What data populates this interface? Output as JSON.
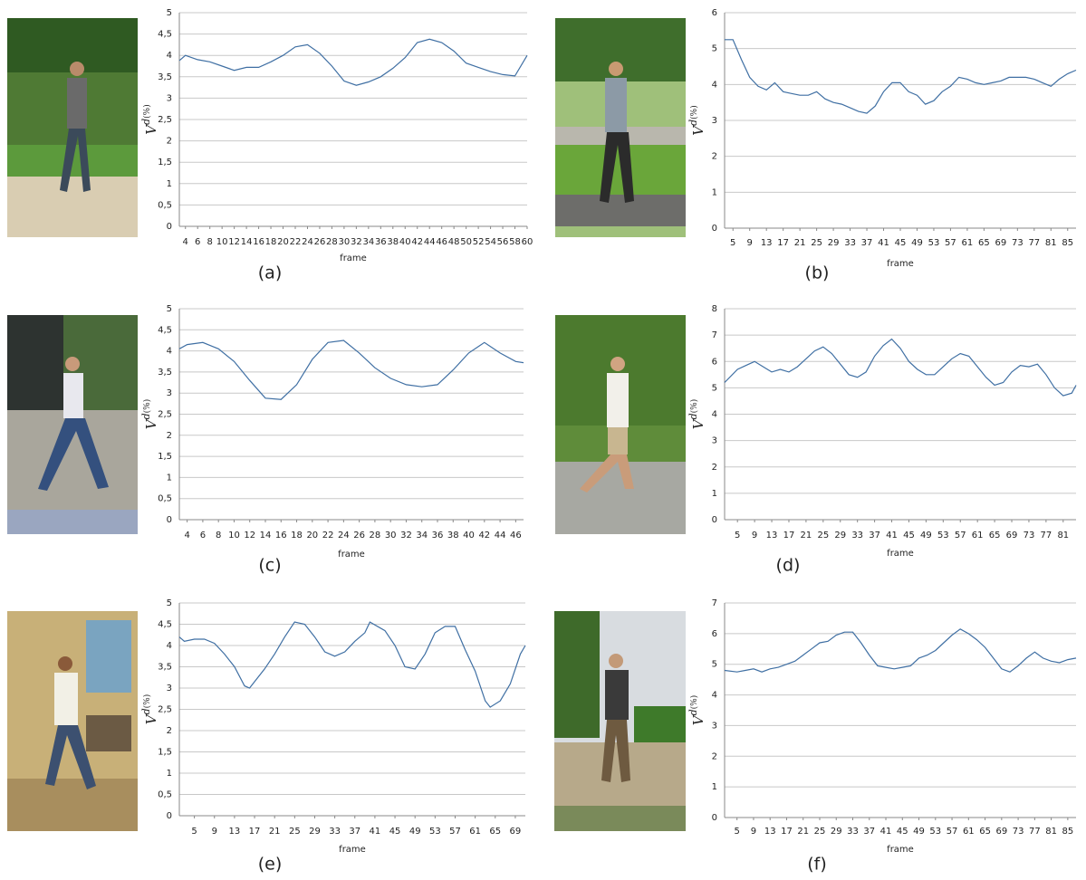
{
  "chart_data": [
    {
      "type": "line",
      "caption": "(a)",
      "x_label": "frame",
      "y_label": "V",
      "y_label_superscript": "d",
      "y_label_suffix": "(%)",
      "color": "#3f6fa3",
      "grid": true,
      "x": [
        3,
        4,
        6,
        8,
        10,
        12,
        14,
        16,
        18,
        20,
        22,
        24,
        26,
        28,
        30,
        32,
        34,
        36,
        38,
        40,
        42,
        44,
        46,
        48,
        50,
        52,
        54,
        56,
        58,
        60
      ],
      "values": [
        3.88,
        4.0,
        3.9,
        3.85,
        3.75,
        3.65,
        3.72,
        3.72,
        3.85,
        4.0,
        4.2,
        4.25,
        4.05,
        3.75,
        3.4,
        3.3,
        3.38,
        3.5,
        3.7,
        3.95,
        4.3,
        4.38,
        4.3,
        4.1,
        3.82,
        3.72,
        3.62,
        3.55,
        3.52,
        4.0
      ],
      "xlim": [
        3,
        60
      ],
      "xticks": [
        4,
        6,
        8,
        10,
        12,
        14,
        16,
        18,
        20,
        22,
        24,
        26,
        28,
        30,
        32,
        34,
        36,
        38,
        40,
        42,
        44,
        46,
        48,
        50,
        52,
        54,
        56,
        58,
        60
      ],
      "ylim": [
        0,
        5
      ],
      "yticks": [
        0,
        {
          "value": 0.5,
          "label": "0,5"
        },
        1,
        {
          "value": 1.5,
          "label": "1,5"
        },
        2,
        {
          "value": 2.5,
          "label": "2,5"
        },
        3,
        {
          "value": 3.5,
          "label": "3,5"
        },
        4,
        {
          "value": 4.5,
          "label": "4,5"
        },
        5
      ]
    },
    {
      "type": "line",
      "caption": "(b)",
      "x_label": "frame",
      "y_label": "V",
      "y_label_superscript": "d",
      "y_label_suffix": "(%)",
      "color": "#3f6fa3",
      "grid": true,
      "x": [
        3,
        5,
        7,
        9,
        11,
        13,
        15,
        17,
        19,
        21,
        23,
        25,
        27,
        29,
        31,
        33,
        35,
        37,
        39,
        41,
        43,
        45,
        47,
        49,
        51,
        53,
        55,
        57,
        59,
        61,
        63,
        65,
        67,
        69,
        71,
        73,
        75,
        77,
        79,
        81,
        83,
        85,
        87
      ],
      "values": [
        5.25,
        5.25,
        4.7,
        4.2,
        3.95,
        3.85,
        4.05,
        3.8,
        3.75,
        3.7,
        3.7,
        3.8,
        3.6,
        3.5,
        3.45,
        3.35,
        3.25,
        3.2,
        3.4,
        3.8,
        4.05,
        4.05,
        3.8,
        3.7,
        3.45,
        3.55,
        3.8,
        3.95,
        4.2,
        4.15,
        4.05,
        4.0,
        4.05,
        4.1,
        4.2,
        4.2,
        4.2,
        4.15,
        4.05,
        3.95,
        4.15,
        4.3,
        4.4
      ],
      "xlim": [
        3,
        87
      ],
      "xticks": [
        5,
        9,
        13,
        17,
        21,
        25,
        29,
        33,
        37,
        41,
        45,
        49,
        53,
        57,
        61,
        65,
        69,
        73,
        77,
        81,
        85
      ],
      "ylim": [
        0,
        6
      ],
      "yticks": [
        0,
        1,
        2,
        3,
        4,
        5,
        6
      ]
    },
    {
      "type": "line",
      "caption": "(c)",
      "x_label": "frame",
      "y_label": "V",
      "y_label_superscript": "d",
      "y_label_suffix": "(%)",
      "color": "#3f6fa3",
      "grid": true,
      "x": [
        3,
        4,
        6,
        8,
        10,
        12,
        14,
        16,
        18,
        20,
        22,
        24,
        26,
        28,
        30,
        32,
        34,
        36,
        38,
        40,
        42,
        44,
        46,
        47
      ],
      "values": [
        4.05,
        4.15,
        4.2,
        4.05,
        3.75,
        3.3,
        2.88,
        2.85,
        3.2,
        3.8,
        4.2,
        4.25,
        3.95,
        3.6,
        3.35,
        3.2,
        3.15,
        3.2,
        3.55,
        3.95,
        4.2,
        3.95,
        3.75,
        3.72
      ],
      "xlim": [
        3,
        47
      ],
      "xticks": [
        4,
        6,
        8,
        10,
        12,
        14,
        16,
        18,
        20,
        22,
        24,
        26,
        28,
        30,
        32,
        34,
        36,
        38,
        40,
        42,
        44,
        46
      ],
      "ylim": [
        0,
        5
      ],
      "yticks": [
        0,
        {
          "value": 0.5,
          "label": "0,5"
        },
        1,
        {
          "value": 1.5,
          "label": "1,5"
        },
        2,
        {
          "value": 2.5,
          "label": "2,5"
        },
        3,
        {
          "value": 3.5,
          "label": "3,5"
        },
        4,
        {
          "value": 4.5,
          "label": "4,5"
        },
        5
      ]
    },
    {
      "type": "line",
      "caption": "(d)",
      "x_label": "frame",
      "y_label": "V",
      "y_label_superscript": "d",
      "y_label_suffix": "(%)",
      "color": "#3f6fa3",
      "grid": true,
      "x": [
        2,
        5,
        7,
        9,
        11,
        13,
        15,
        17,
        19,
        21,
        23,
        25,
        27,
        29,
        31,
        33,
        35,
        37,
        39,
        41,
        43,
        45,
        47,
        49,
        51,
        53,
        55,
        57,
        59,
        61,
        63,
        65,
        67,
        69,
        71,
        73,
        75,
        77,
        79,
        81,
        83,
        84
      ],
      "values": [
        5.2,
        5.7,
        5.85,
        6.0,
        5.8,
        5.6,
        5.7,
        5.6,
        5.8,
        6.1,
        6.4,
        6.55,
        6.3,
        5.9,
        5.5,
        5.4,
        5.6,
        6.2,
        6.6,
        6.85,
        6.5,
        6.0,
        5.7,
        5.5,
        5.5,
        5.8,
        6.1,
        6.3,
        6.2,
        5.8,
        5.4,
        5.1,
        5.2,
        5.6,
        5.85,
        5.8,
        5.9,
        5.5,
        5.0,
        4.7,
        4.8,
        5.1
      ],
      "xlim": [
        2,
        84
      ],
      "xticks": [
        5,
        9,
        13,
        17,
        21,
        25,
        29,
        33,
        37,
        41,
        45,
        49,
        53,
        57,
        61,
        65,
        69,
        73,
        77,
        81
      ],
      "ylim": [
        0,
        8
      ],
      "yticks": [
        0,
        1,
        2,
        3,
        4,
        5,
        6,
        7,
        8
      ]
    },
    {
      "type": "line",
      "caption": "(e)",
      "x_label": "frame",
      "y_label": "V",
      "y_label_superscript": "d",
      "y_label_suffix": "(%)",
      "color": "#3f6fa3",
      "grid": true,
      "x": [
        2,
        3,
        5,
        7,
        9,
        11,
        13,
        15,
        16,
        17,
        19,
        21,
        23,
        25,
        27,
        29,
        31,
        33,
        35,
        37,
        39,
        40,
        43,
        45,
        47,
        49,
        51,
        53,
        55,
        57,
        59,
        61,
        63,
        64,
        66,
        68,
        70,
        71
      ],
      "values": [
        4.2,
        4.1,
        4.15,
        4.15,
        4.05,
        3.8,
        3.5,
        3.05,
        3.0,
        3.15,
        3.45,
        3.8,
        4.2,
        4.55,
        4.5,
        4.2,
        3.85,
        3.75,
        3.85,
        4.1,
        4.3,
        4.55,
        4.35,
        4.0,
        3.5,
        3.45,
        3.8,
        4.3,
        4.45,
        4.45,
        3.9,
        3.4,
        2.7,
        2.55,
        2.7,
        3.1,
        3.8,
        4.0
      ],
      "xlim": [
        2,
        71
      ],
      "xticks": [
        5,
        9,
        13,
        17,
        21,
        25,
        29,
        33,
        37,
        41,
        45,
        49,
        53,
        57,
        61,
        65,
        69
      ],
      "ylim": [
        0,
        5
      ],
      "yticks": [
        0,
        {
          "value": 0.5,
          "label": "0,5"
        },
        1,
        {
          "value": 1.5,
          "label": "1,5"
        },
        2,
        {
          "value": 2.5,
          "label": "2,5"
        },
        3,
        {
          "value": 3.5,
          "label": "3,5"
        },
        4,
        {
          "value": 4.5,
          "label": "4,5"
        },
        5
      ]
    },
    {
      "type": "line",
      "caption": "(f)",
      "x_label": "frame",
      "y_label": "V",
      "y_label_superscript": "d",
      "y_label_suffix": "(%)",
      "color": "#3f6fa3",
      "grid": true,
      "x": [
        2,
        5,
        7,
        9,
        11,
        13,
        15,
        17,
        19,
        21,
        23,
        25,
        27,
        29,
        31,
        33,
        35,
        37,
        39,
        41,
        43,
        45,
        47,
        49,
        51,
        53,
        55,
        57,
        59,
        61,
        63,
        65,
        67,
        69,
        71,
        73,
        75,
        77,
        79,
        81,
        83,
        85,
        87
      ],
      "values": [
        4.8,
        4.75,
        4.8,
        4.85,
        4.75,
        4.85,
        4.9,
        5.0,
        5.1,
        5.3,
        5.5,
        5.7,
        5.75,
        5.95,
        6.05,
        6.05,
        5.7,
        5.3,
        4.95,
        4.9,
        4.85,
        4.9,
        4.95,
        5.2,
        5.3,
        5.45,
        5.7,
        5.95,
        6.15,
        6.0,
        5.8,
        5.55,
        5.2,
        4.85,
        4.75,
        4.95,
        5.2,
        5.4,
        5.2,
        5.1,
        5.05,
        5.15,
        5.2
      ],
      "xlim": [
        2,
        87
      ],
      "xticks": [
        5,
        9,
        13,
        17,
        21,
        25,
        29,
        33,
        37,
        41,
        45,
        49,
        53,
        57,
        61,
        65,
        69,
        73,
        77,
        81,
        85
      ],
      "ylim": [
        0,
        7
      ],
      "yticks": [
        0,
        1,
        2,
        3,
        4,
        5,
        6,
        7
      ]
    }
  ]
}
